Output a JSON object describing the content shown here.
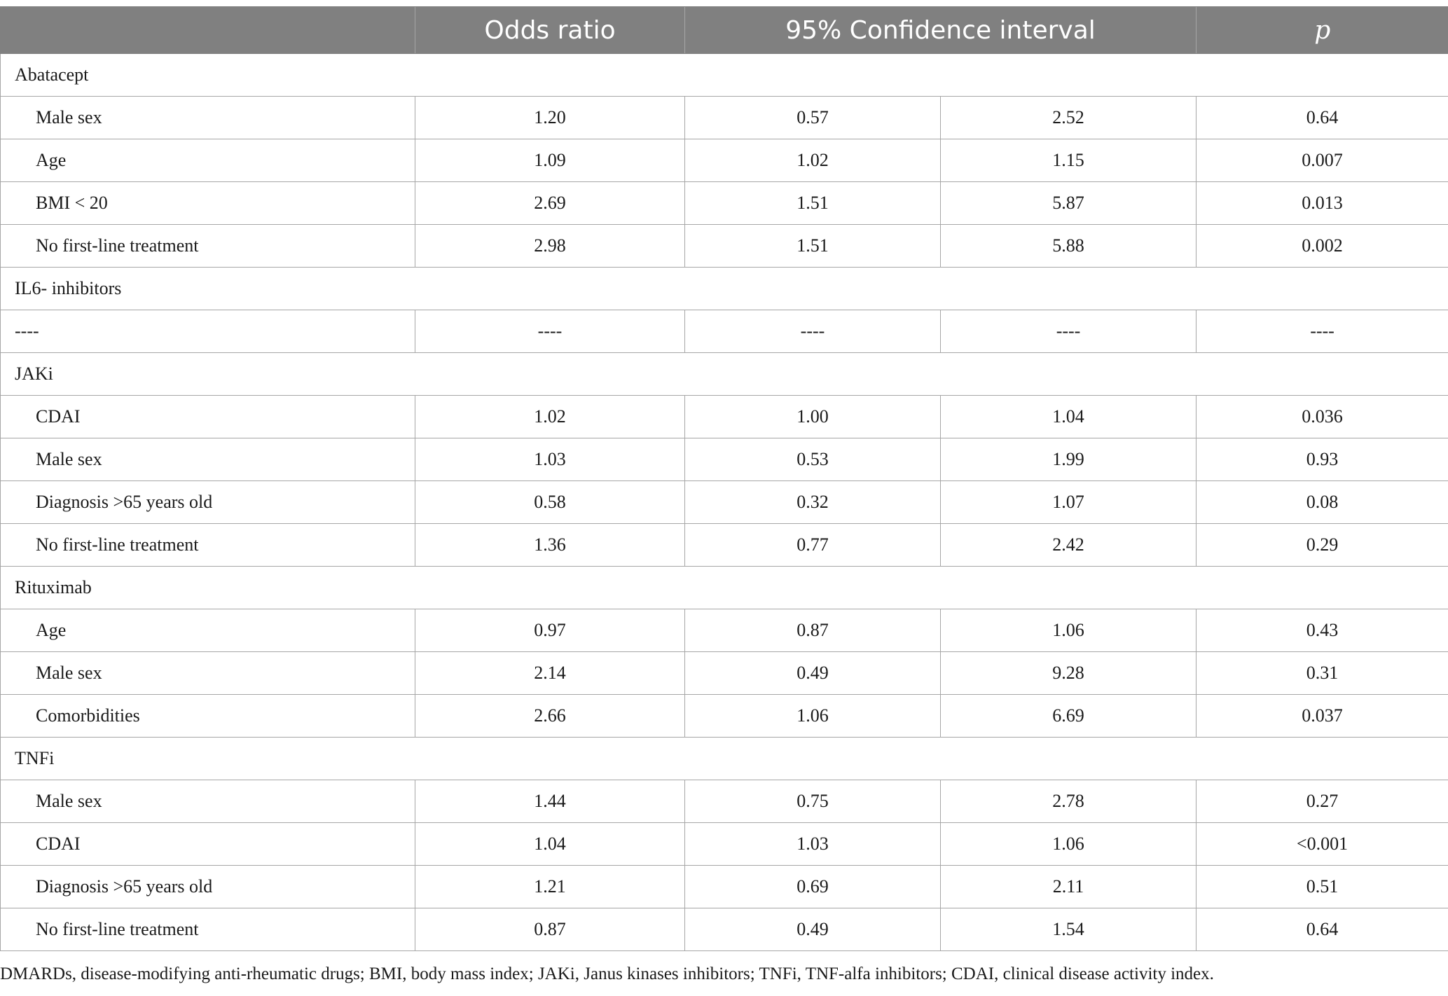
{
  "header": {
    "col0": "",
    "odds_ratio": "Odds ratio",
    "ci": "95% Confidence interval",
    "p": "p"
  },
  "groups": [
    {
      "name": "Abatacept",
      "rows": [
        {
          "label": "Male sex",
          "or": "1.20",
          "ci_low": "0.57",
          "ci_high": "2.52",
          "p": "0.64"
        },
        {
          "label": "Age",
          "or": "1.09",
          "ci_low": "1.02",
          "ci_high": "1.15",
          "p": "0.007"
        },
        {
          "label": "BMI < 20",
          "or": "2.69",
          "ci_low": "1.51",
          "ci_high": "5.87",
          "p": "0.013"
        },
        {
          "label": "No first-line treatment",
          "or": "2.98",
          "ci_low": "1.51",
          "ci_high": "5.88",
          "p": "0.002"
        }
      ]
    },
    {
      "name": "IL6- inhibitors",
      "rows": [
        {
          "label": "----",
          "or": "----",
          "ci_low": "----",
          "ci_high": "----",
          "p": "----",
          "flush": true
        }
      ]
    },
    {
      "name": "JAKi",
      "rows": [
        {
          "label": "CDAI",
          "or": "1.02",
          "ci_low": "1.00",
          "ci_high": "1.04",
          "p": "0.036"
        },
        {
          "label": "Male sex",
          "or": "1.03",
          "ci_low": "0.53",
          "ci_high": "1.99",
          "p": "0.93"
        },
        {
          "label": "Diagnosis >65 years old",
          "or": "0.58",
          "ci_low": "0.32",
          "ci_high": "1.07",
          "p": "0.08"
        },
        {
          "label": "No first-line treatment",
          "or": "1.36",
          "ci_low": "0.77",
          "ci_high": "2.42",
          "p": "0.29"
        }
      ]
    },
    {
      "name": "Rituximab",
      "rows": [
        {
          "label": "Age",
          "or": "0.97",
          "ci_low": "0.87",
          "ci_high": "1.06",
          "p": "0.43"
        },
        {
          "label": "Male sex",
          "or": "2.14",
          "ci_low": "0.49",
          "ci_high": "9.28",
          "p": "0.31"
        },
        {
          "label": "Comorbidities",
          "or": "2.66",
          "ci_low": "1.06",
          "ci_high": "6.69",
          "p": "0.037"
        }
      ]
    },
    {
      "name": "TNFi",
      "rows": [
        {
          "label": "Male sex",
          "or": "1.44",
          "ci_low": "0.75",
          "ci_high": "2.78",
          "p": "0.27"
        },
        {
          "label": "CDAI",
          "or": "1.04",
          "ci_low": "1.03",
          "ci_high": "1.06",
          "p": "<0.001"
        },
        {
          "label": "Diagnosis >65 years old",
          "or": "1.21",
          "ci_low": "0.69",
          "ci_high": "2.11",
          "p": "0.51"
        },
        {
          "label": "No first-line treatment",
          "or": "0.87",
          "ci_low": "0.49",
          "ci_high": "1.54",
          "p": "0.64"
        }
      ]
    }
  ],
  "footnote": "DMARDs, disease-modifying anti-rheumatic drugs; BMI, body mass index; JAKi, Janus kinases inhibitors; TNFi, TNF-alfa inhibitors; CDAI, clinical disease activity index."
}
